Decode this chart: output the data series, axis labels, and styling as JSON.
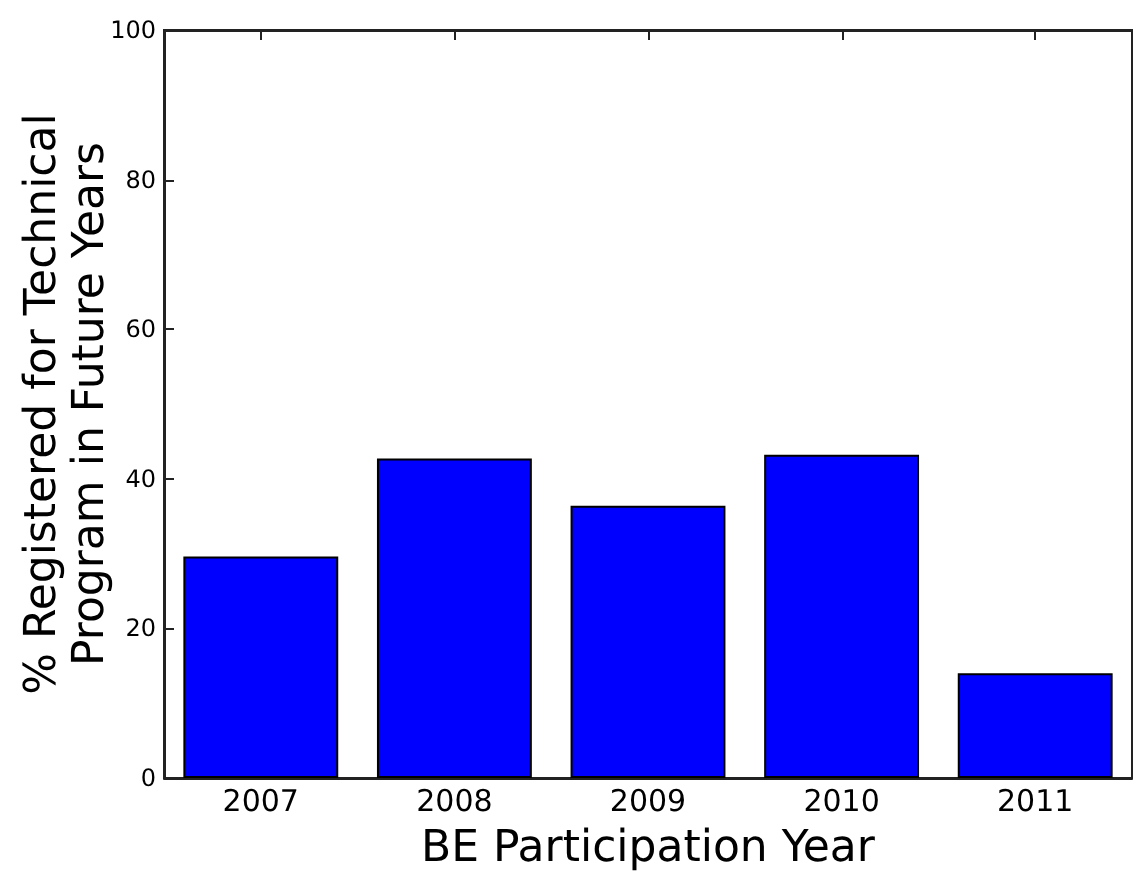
{
  "chart_data": {
    "type": "bar",
    "xlabel": "BE Participation Year",
    "ylabel": "% Registered for Technical Program in Future Years",
    "categories": [
      "2007",
      "2008",
      "2009",
      "2010",
      "2011"
    ],
    "values": [
      29.6,
      42.7,
      36.4,
      43.2,
      14.0
    ],
    "color": "#0000ff",
    "ylim": [
      0,
      100
    ],
    "yticks": [
      0,
      20,
      40,
      60,
      80,
      100
    ]
  }
}
